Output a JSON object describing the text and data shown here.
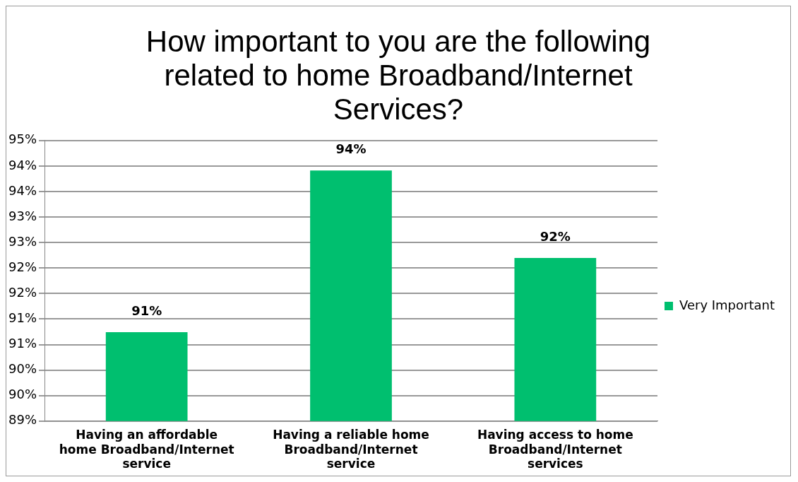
{
  "chart_data": {
    "type": "bar",
    "title": "How important to you are the following related to home Broadband/Internet Services?",
    "categories": [
      "Having an affordable home Broadband/Internet service",
      "Having a reliable home Broadband/Internet service",
      "Having access to home Broadband/Internet services"
    ],
    "series": [
      {
        "name": "Very Important",
        "color": "#00bf6f",
        "values": [
          90.9,
          94.36,
          92.49
        ],
        "value_labels": [
          "91%",
          "94%",
          "92%"
        ]
      }
    ],
    "ylim": [
      89,
      95
    ],
    "yticks": [
      {
        "value": 89,
        "label": "89%"
      },
      {
        "value": 89.545,
        "label": "90%"
      },
      {
        "value": 90.091,
        "label": "90%"
      },
      {
        "value": 90.636,
        "label": "91%"
      },
      {
        "value": 91.182,
        "label": "91%"
      },
      {
        "value": 91.727,
        "label": "92%"
      },
      {
        "value": 92.273,
        "label": "92%"
      },
      {
        "value": 92.818,
        "label": "93%"
      },
      {
        "value": 93.364,
        "label": "93%"
      },
      {
        "value": 93.909,
        "label": "94%"
      },
      {
        "value": 94.455,
        "label": "94%"
      },
      {
        "value": 95,
        "label": "95%"
      }
    ],
    "grid": "y",
    "legend": "right"
  }
}
